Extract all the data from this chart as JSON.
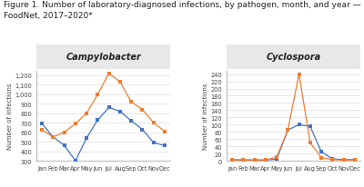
{
  "title_line1": "Figure 1. Number of laboratory-diagnosed infections, by pathogen, month, and year —",
  "title_line2": "FoodNet, 2017–2020*",
  "months": [
    "Jan",
    "Feb",
    "Mar",
    "Apr",
    "May",
    "Jun",
    "Jul",
    "Aug",
    "Sep",
    "Oct",
    "Nov",
    "Dec"
  ],
  "campylobacter": {
    "title": "Campylobacter",
    "blue": [
      690,
      550,
      460,
      300,
      540,
      730,
      860,
      820,
      720,
      630,
      490,
      460
    ],
    "orange": [
      625,
      550,
      600,
      690,
      800,
      1000,
      1220,
      1130,
      920,
      840,
      700,
      610
    ],
    "ylim": [
      300,
      1250
    ],
    "yticks": [
      300,
      400,
      500,
      600,
      700,
      800,
      900,
      1000,
      1100,
      1200
    ],
    "ylabel": "Number of Infections"
  },
  "cyclospora": {
    "title": "Cyclospora",
    "blue": [
      3,
      2,
      2,
      2,
      4,
      85,
      100,
      95,
      25,
      5,
      3,
      3
    ],
    "orange": [
      2,
      2,
      2,
      2,
      10,
      85,
      240,
      50,
      8,
      3,
      2,
      2
    ],
    "ylim": [
      0,
      250
    ],
    "yticks": [
      0,
      20,
      40,
      60,
      80,
      100,
      120,
      140,
      160,
      180,
      200,
      220,
      240
    ],
    "ylabel": "Number of Infections"
  },
  "blue_color": "#4472c4",
  "orange_color": "#ed7d31",
  "title_bg": "#e8e8e8",
  "title_fontsize": 6.5,
  "axis_label_fontsize": 5.0,
  "tick_fontsize": 4.8,
  "subplot_title_fontsize": 7.0
}
